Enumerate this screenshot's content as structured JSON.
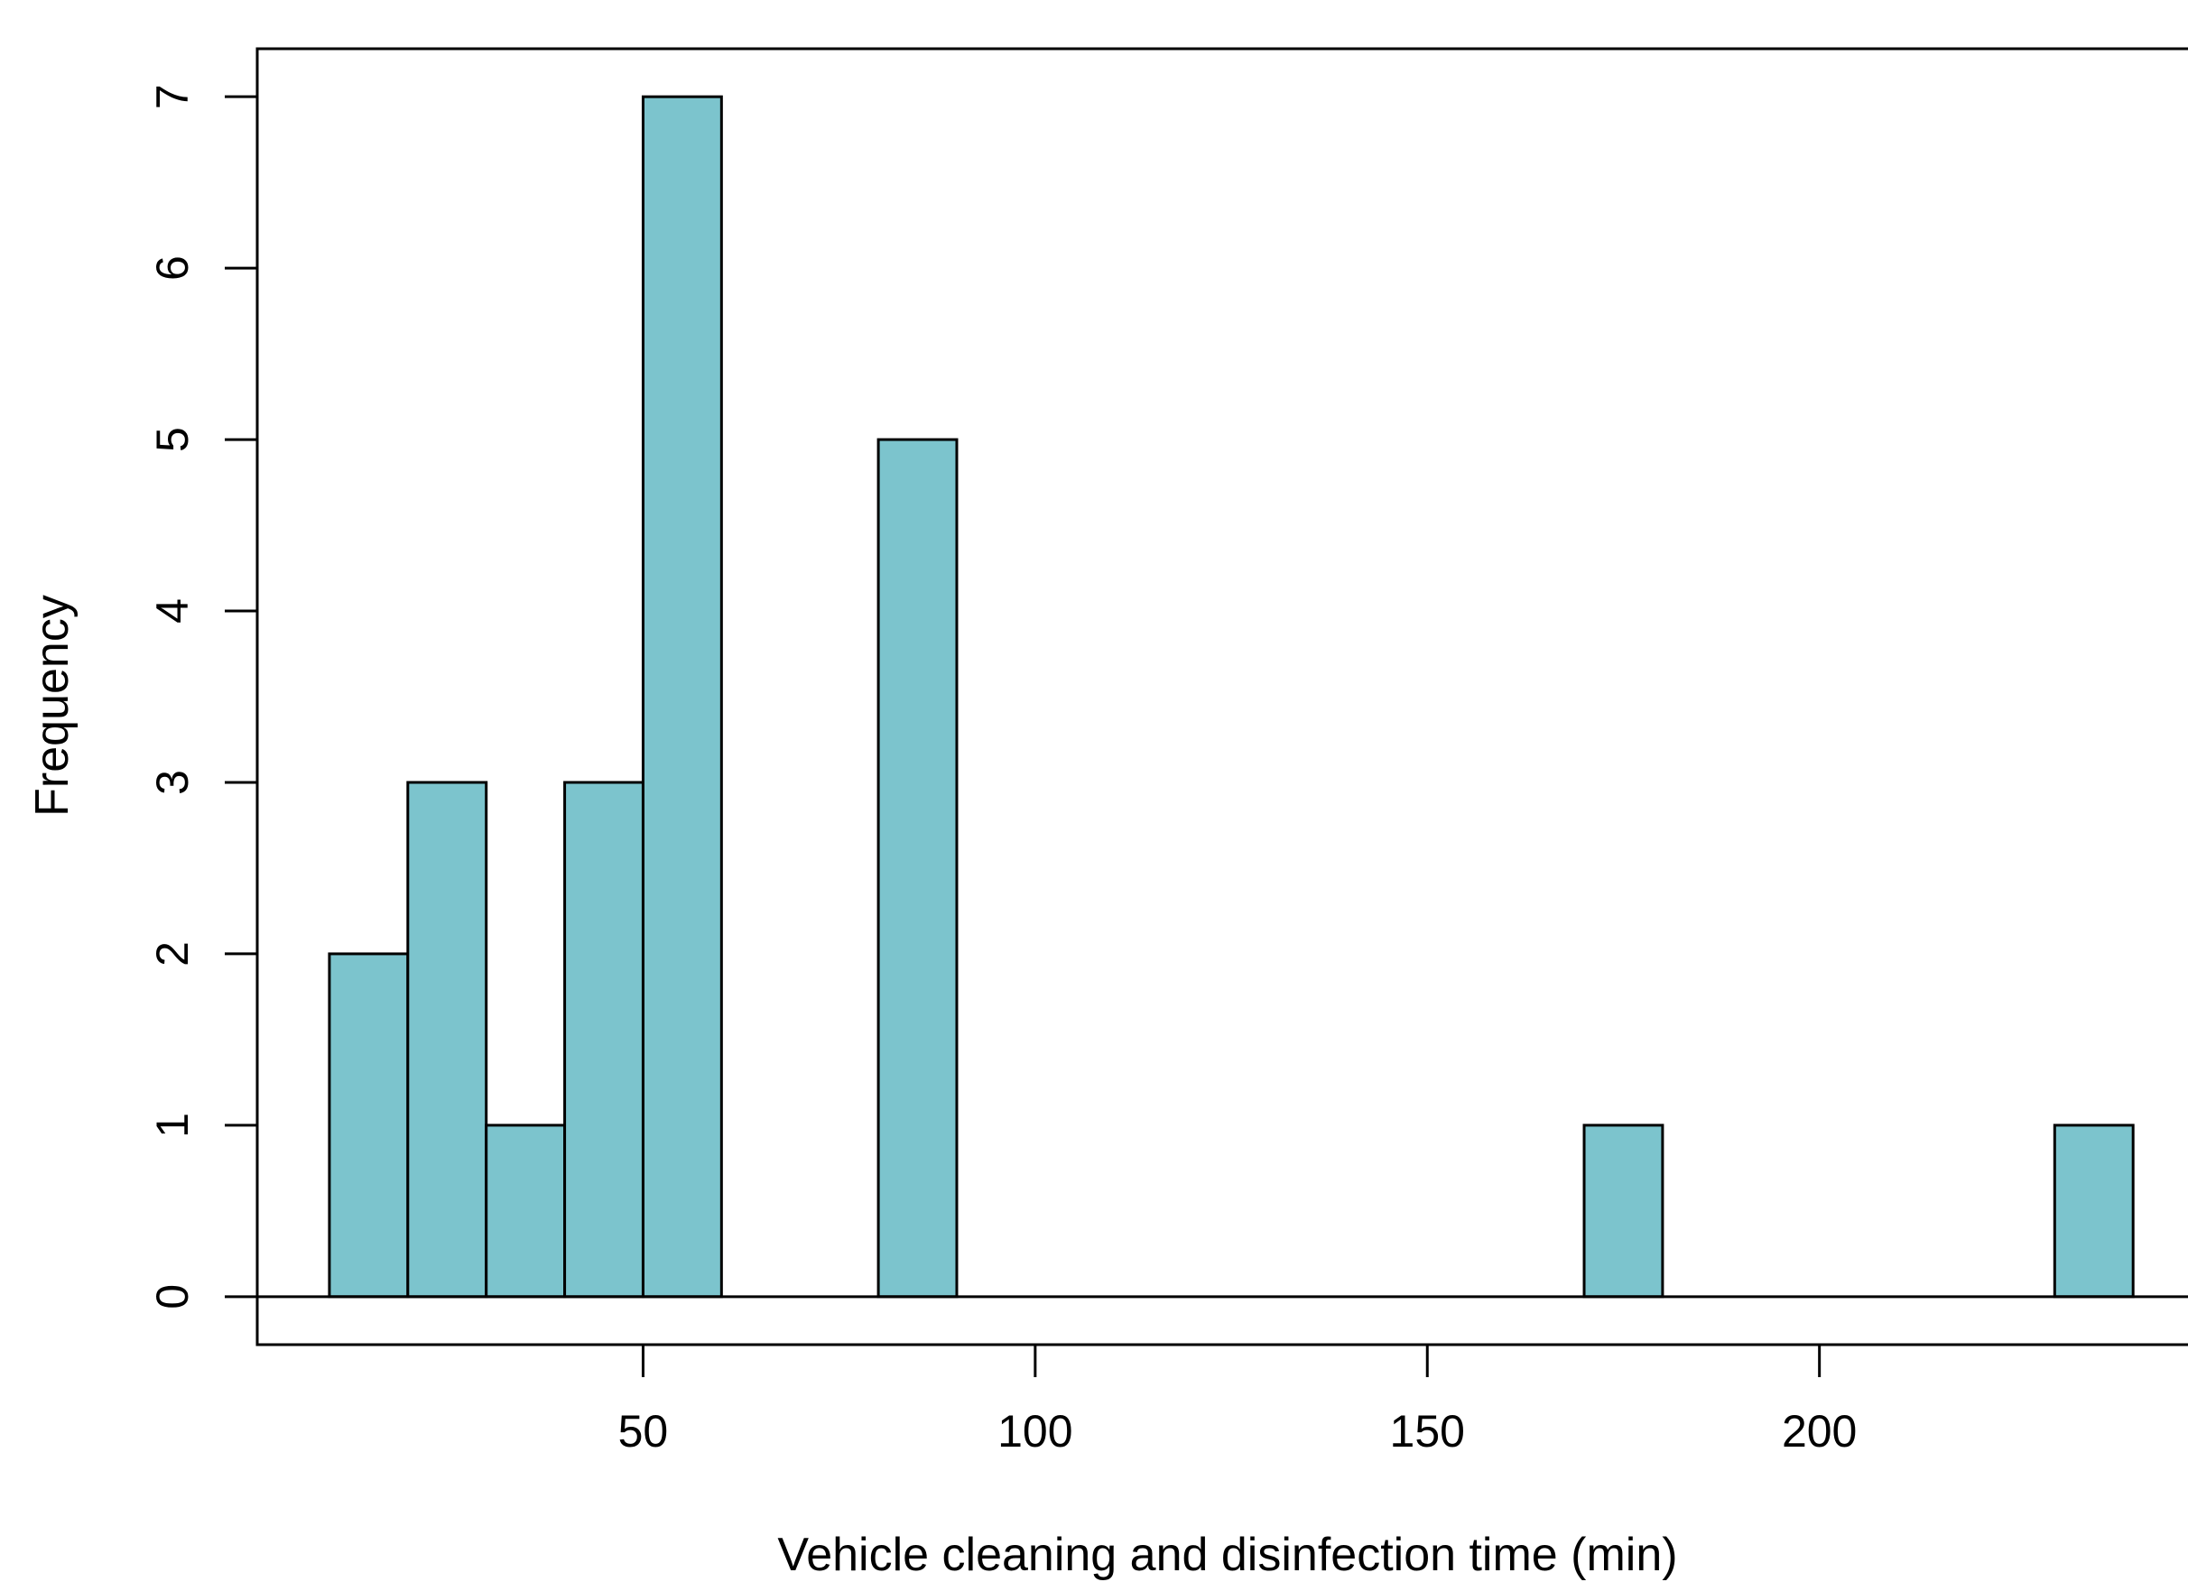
{
  "chart_data": {
    "type": "bar",
    "chart_kind": "histogram",
    "xlabel": "Vehicle cleaning and disinfection time (min)",
    "ylabel": "Frequency",
    "bin_width": 10,
    "bins": [
      {
        "start": 10,
        "end": 20,
        "count": 2
      },
      {
        "start": 20,
        "end": 30,
        "count": 3
      },
      {
        "start": 30,
        "end": 40,
        "count": 1
      },
      {
        "start": 40,
        "end": 50,
        "count": 3
      },
      {
        "start": 50,
        "end": 60,
        "count": 7
      },
      {
        "start": 60,
        "end": 70,
        "count": 0
      },
      {
        "start": 70,
        "end": 80,
        "count": 0
      },
      {
        "start": 80,
        "end": 90,
        "count": 5
      },
      {
        "start": 90,
        "end": 100,
        "count": 0
      },
      {
        "start": 100,
        "end": 110,
        "count": 0
      },
      {
        "start": 110,
        "end": 120,
        "count": 0
      },
      {
        "start": 120,
        "end": 130,
        "count": 0
      },
      {
        "start": 130,
        "end": 140,
        "count": 0
      },
      {
        "start": 140,
        "end": 150,
        "count": 0
      },
      {
        "start": 150,
        "end": 160,
        "count": 0
      },
      {
        "start": 160,
        "end": 170,
        "count": 0
      },
      {
        "start": 170,
        "end": 180,
        "count": 1
      },
      {
        "start": 180,
        "end": 190,
        "count": 0
      },
      {
        "start": 190,
        "end": 200,
        "count": 0
      },
      {
        "start": 200,
        "end": 210,
        "count": 0
      },
      {
        "start": 210,
        "end": 220,
        "count": 0
      },
      {
        "start": 220,
        "end": 230,
        "count": 0
      },
      {
        "start": 230,
        "end": 240,
        "count": 1
      }
    ],
    "x_ticks": [
      50,
      100,
      150,
      200
    ],
    "y_ticks": [
      0,
      1,
      2,
      3,
      4,
      5,
      6,
      7
    ],
    "xlim": [
      0.8,
      247
    ],
    "ylim": [
      -0.28,
      7.28
    ],
    "bar_color": "#7cc4cd",
    "edge_color": "#000000",
    "grid": false,
    "legend": "none"
  }
}
